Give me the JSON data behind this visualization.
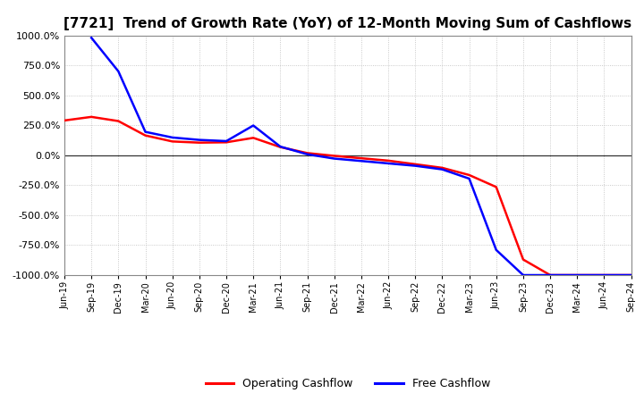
{
  "title": "[7721]  Trend of Growth Rate (YoY) of 12-Month Moving Sum of Cashflows",
  "title_fontsize": 11,
  "ylim": [
    -1000,
    1000
  ],
  "yticks": [
    -1000,
    -750,
    -500,
    -250,
    0,
    250,
    500,
    750,
    1000
  ],
  "background_color": "#ffffff",
  "plot_bg_color": "#ffffff",
  "grid_color": "#bbbbbb",
  "zero_line_color": "#333333",
  "legend_labels": [
    "Operating Cashflow",
    "Free Cashflow"
  ],
  "line_colors": [
    "#ff0000",
    "#0000ff"
  ],
  "line_width": 1.8,
  "x_labels": [
    "Jun-19",
    "Sep-19",
    "Dec-19",
    "Mar-20",
    "Jun-20",
    "Sep-20",
    "Dec-20",
    "Mar-21",
    "Jun-21",
    "Sep-21",
    "Dec-21",
    "Mar-22",
    "Jun-22",
    "Sep-22",
    "Dec-22",
    "Mar-23",
    "Jun-23",
    "Sep-23",
    "Dec-23",
    "Mar-24",
    "Jun-24",
    "Sep-24"
  ],
  "operating_cf": [
    290,
    320,
    285,
    165,
    115,
    105,
    108,
    145,
    68,
    18,
    -5,
    -25,
    -45,
    -75,
    -105,
    -165,
    -265,
    -870,
    -1000,
    -1000,
    -1000,
    -1000
  ],
  "free_cf": [
    null,
    980,
    700,
    195,
    148,
    128,
    118,
    248,
    72,
    8,
    -28,
    -48,
    -68,
    -88,
    -118,
    -195,
    -790,
    -1000,
    -1000,
    -1000,
    -1000,
    -1000
  ]
}
